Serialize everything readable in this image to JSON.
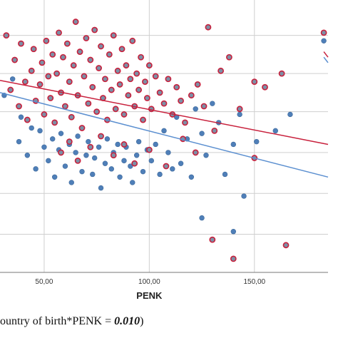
{
  "chart_data": {
    "type": "scatter",
    "xlabel": "PENK",
    "ylabel": "",
    "xlim": [
      29,
      185
    ],
    "ylim": [
      0,
      100
    ],
    "x_ticks": [
      50,
      100,
      150
    ],
    "x_tick_labels": [
      "50,00",
      "100,00",
      "150,00"
    ],
    "y_gridlines": [
      14,
      29,
      44,
      59,
      73,
      87
    ],
    "grid": true,
    "series": [
      {
        "color": "#4f7fb8",
        "points": [
          [
            31,
            65
          ],
          [
            35,
            71
          ],
          [
            38,
            48
          ],
          [
            39,
            57
          ],
          [
            42,
            43
          ],
          [
            44,
            53
          ],
          [
            46,
            38
          ],
          [
            48,
            52
          ],
          [
            50,
            46
          ],
          [
            52,
            41
          ],
          [
            54,
            49
          ],
          [
            55,
            35
          ],
          [
            57,
            45
          ],
          [
            58,
            51
          ],
          [
            60,
            39
          ],
          [
            62,
            47
          ],
          [
            63,
            33
          ],
          [
            65,
            44
          ],
          [
            66,
            50
          ],
          [
            68,
            37
          ],
          [
            70,
            43
          ],
          [
            71,
            48
          ],
          [
            73,
            36
          ],
          [
            74,
            42
          ],
          [
            76,
            46
          ],
          [
            77,
            31
          ],
          [
            79,
            40
          ],
          [
            80,
            49
          ],
          [
            82,
            38
          ],
          [
            83,
            44
          ],
          [
            85,
            47
          ],
          [
            86,
            35
          ],
          [
            88,
            41
          ],
          [
            89,
            46
          ],
          [
            91,
            39
          ],
          [
            92,
            33
          ],
          [
            94,
            43
          ],
          [
            95,
            48
          ],
          [
            97,
            37
          ],
          [
            99,
            45
          ],
          [
            101,
            41
          ],
          [
            103,
            47
          ],
          [
            105,
            36
          ],
          [
            107,
            52
          ],
          [
            109,
            44
          ],
          [
            111,
            38
          ],
          [
            113,
            57
          ],
          [
            115,
            40
          ],
          [
            118,
            49
          ],
          [
            120,
            35
          ],
          [
            122,
            60
          ],
          [
            125,
            51
          ],
          [
            127,
            43
          ],
          [
            130,
            62
          ],
          [
            133,
            55
          ],
          [
            136,
            36
          ],
          [
            140,
            47
          ],
          [
            143,
            58
          ],
          [
            145,
            28
          ],
          [
            151,
            48
          ],
          [
            125,
            20
          ],
          [
            140,
            15
          ],
          [
            160,
            52
          ],
          [
            167,
            58
          ],
          [
            183,
            85
          ]
        ]
      },
      {
        "color": "#c8203c",
        "points": [
          [
            32,
            87
          ],
          [
            34,
            67
          ],
          [
            36,
            78
          ],
          [
            38,
            61
          ],
          [
            39,
            84
          ],
          [
            41,
            70
          ],
          [
            42,
            56
          ],
          [
            44,
            74
          ],
          [
            45,
            82
          ],
          [
            46,
            63
          ],
          [
            48,
            69
          ],
          [
            49,
            77
          ],
          [
            50,
            58
          ],
          [
            51,
            85
          ],
          [
            52,
            72
          ],
          [
            53,
            64
          ],
          [
            54,
            80
          ],
          [
            55,
            55
          ],
          [
            56,
            73
          ],
          [
            57,
            88
          ],
          [
            58,
            66
          ],
          [
            59,
            79
          ],
          [
            60,
            61
          ],
          [
            61,
            84
          ],
          [
            62,
            70
          ],
          [
            63,
            57
          ],
          [
            64,
            76
          ],
          [
            65,
            92
          ],
          [
            66,
            65
          ],
          [
            67,
            81
          ],
          [
            68,
            53
          ],
          [
            69,
            72
          ],
          [
            70,
            86
          ],
          [
            71,
            62
          ],
          [
            72,
            78
          ],
          [
            73,
            68
          ],
          [
            74,
            89
          ],
          [
            75,
            59
          ],
          [
            76,
            75
          ],
          [
            77,
            83
          ],
          [
            78,
            64
          ],
          [
            79,
            71
          ],
          [
            80,
            56
          ],
          [
            81,
            80
          ],
          [
            82,
            67
          ],
          [
            83,
            87
          ],
          [
            84,
            60
          ],
          [
            85,
            74
          ],
          [
            86,
            69
          ],
          [
            87,
            82
          ],
          [
            88,
            58
          ],
          [
            89,
            76
          ],
          [
            90,
            65
          ],
          [
            91,
            71
          ],
          [
            92,
            85
          ],
          [
            93,
            61
          ],
          [
            94,
            73
          ],
          [
            95,
            67
          ],
          [
            96,
            79
          ],
          [
            97,
            56
          ],
          [
            98,
            70
          ],
          [
            99,
            64
          ],
          [
            100,
            76
          ],
          [
            101,
            60
          ],
          [
            103,
            72
          ],
          [
            105,
            66
          ],
          [
            107,
            62
          ],
          [
            109,
            71
          ],
          [
            111,
            58
          ],
          [
            113,
            68
          ],
          [
            115,
            63
          ],
          [
            117,
            55
          ],
          [
            120,
            65
          ],
          [
            123,
            69
          ],
          [
            126,
            61
          ],
          [
            128,
            90
          ],
          [
            131,
            52
          ],
          [
            134,
            74
          ],
          [
            138,
            79
          ],
          [
            143,
            60
          ],
          [
            150,
            70
          ],
          [
            155,
            68
          ],
          [
            163,
            73
          ],
          [
            58,
            44
          ],
          [
            62,
            48
          ],
          [
            66,
            41
          ],
          [
            72,
            46
          ],
          [
            77,
            50
          ],
          [
            83,
            43
          ],
          [
            88,
            47
          ],
          [
            93,
            40
          ],
          [
            100,
            45
          ],
          [
            108,
            39
          ],
          [
            116,
            49
          ],
          [
            122,
            44
          ],
          [
            130,
            12
          ],
          [
            140,
            5
          ],
          [
            150,
            42
          ],
          [
            165,
            10
          ],
          [
            183,
            88
          ]
        ]
      }
    ],
    "fit_lines": [
      {
        "color": "#c8203c",
        "x": [
          29,
          185
        ],
        "y": [
          70.5,
          47
        ]
      },
      {
        "color": "#5b8fd0",
        "x": [
          29,
          185
        ],
        "y": [
          66,
          35
        ]
      },
      {
        "color": "#5b8fd0",
        "x": [
          183,
          185
        ],
        "y": [
          79,
          77
        ]
      },
      {
        "color": "#c8203c",
        "x": [
          183,
          185
        ],
        "y": [
          81,
          79
        ]
      }
    ]
  },
  "caption": {
    "text": "ountry of birth*PENK = ",
    "value": "0.010",
    "suffix": ")"
  }
}
